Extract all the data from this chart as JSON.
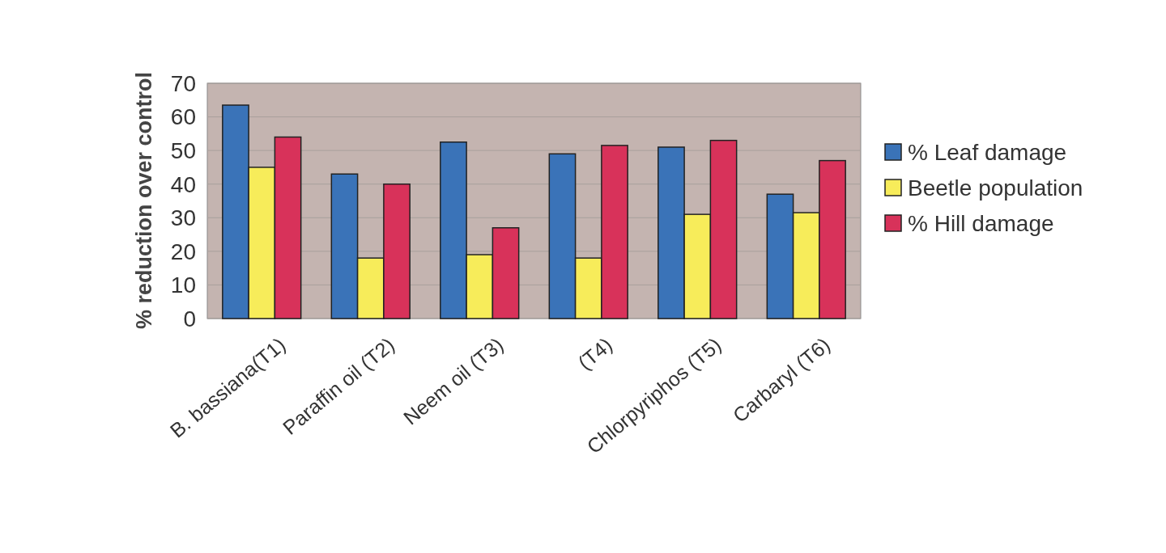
{
  "chart_data": {
    "type": "bar",
    "ylabel": "% reduction over control",
    "categories": [
      "B. bassiana(T1)",
      "Paraffin oil (T2)",
      "Neem oil (T3)",
      "(T4)",
      "Chlorpyriphos (T5)",
      "Carbaryl (T6)"
    ],
    "series": [
      {
        "name": "% Leaf damage",
        "color": "#3a73b8",
        "values": [
          63.5,
          43,
          52.5,
          49,
          51,
          37
        ]
      },
      {
        "name": "Beetle population",
        "color": "#f7ec5a",
        "values": [
          45,
          18,
          19,
          18,
          31,
          31.5
        ]
      },
      {
        "name": "% Hill damage",
        "color": "#d8325a",
        "values": [
          54,
          40,
          27,
          51.5,
          53,
          47
        ]
      }
    ],
    "ylim": [
      0,
      70
    ],
    "yticks": [
      0,
      10,
      20,
      30,
      40,
      50,
      60,
      70
    ],
    "grid": "y",
    "legend": "right"
  }
}
